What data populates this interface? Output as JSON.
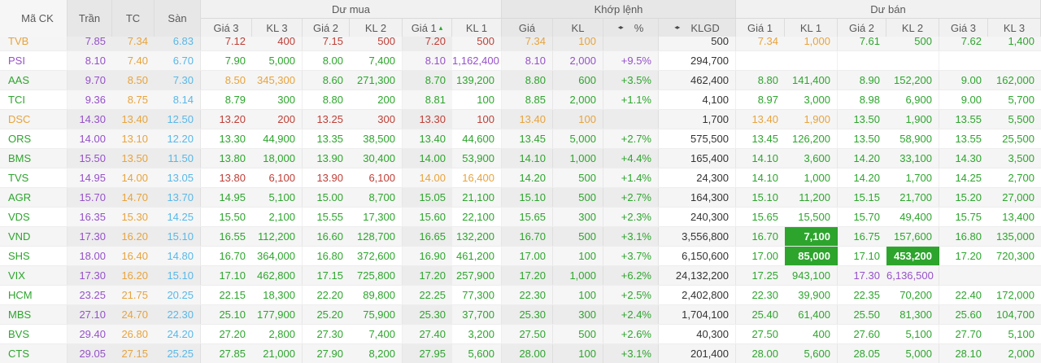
{
  "colors": {
    "up": "#2da52d",
    "down": "#bf3e36",
    "ref": "#e8a33c",
    "ceil": "#9651c9",
    "floor": "#58b8e8",
    "dark": "#333333",
    "flash_bg": "#2da52d"
  },
  "header": {
    "code": "Mã CK",
    "ceiling": "Trần",
    "ref": "TC",
    "floor": "Sàn",
    "buy_group": "Dư mua",
    "matched_group": "Khớp lệnh",
    "sell_group": "Dư bán",
    "buy_cols": [
      "Giá 3",
      "KL 3",
      "Giá 2",
      "KL 2",
      "Giá 1",
      "KL 1"
    ],
    "matched_cols": [
      "Giá",
      "KL",
      "%",
      "KLGD"
    ],
    "sell_cols": [
      "Giá 1",
      "KL 1",
      "Giá 2",
      "KL 2",
      "Giá 3",
      "KL 3"
    ],
    "sort_icon": "▴",
    "swap_icon": "◂▸"
  },
  "rows": [
    {
      "code": "TVB",
      "code_state": "ref",
      "ceiling": "7.85",
      "ref": "7.34",
      "floor": "6.83",
      "cells": [
        [
          "7.12",
          "down"
        ],
        [
          "400",
          "down"
        ],
        [
          "7.15",
          "down"
        ],
        [
          "500",
          "down"
        ],
        [
          "7.20",
          "down"
        ],
        [
          "500",
          "down"
        ],
        [
          "7.34",
          "ref"
        ],
        [
          "100",
          "ref"
        ],
        [
          "",
          ""
        ],
        [
          "500",
          "dark"
        ],
        [
          "7.34",
          "ref"
        ],
        [
          "1,000",
          "ref"
        ],
        [
          "7.61",
          "up"
        ],
        [
          "500",
          "up"
        ],
        [
          "7.62",
          "up"
        ],
        [
          "1,400",
          "up"
        ]
      ]
    },
    {
      "code": "PSI",
      "code_state": "ceil",
      "ceiling": "8.10",
      "ref": "7.40",
      "floor": "6.70",
      "cells": [
        [
          "7.90",
          "up"
        ],
        [
          "5,000",
          "up"
        ],
        [
          "8.00",
          "up"
        ],
        [
          "7,400",
          "up"
        ],
        [
          "8.10",
          "ceil"
        ],
        [
          "1,162,400",
          "ceil"
        ],
        [
          "8.10",
          "ceil"
        ],
        [
          "2,000",
          "ceil"
        ],
        [
          "+9.5%",
          "ceil"
        ],
        [
          "294,700",
          "dark"
        ],
        [
          "",
          ""
        ],
        [
          "",
          ""
        ],
        [
          "",
          ""
        ],
        [
          "",
          ""
        ],
        [
          "",
          ""
        ],
        [
          "",
          ""
        ]
      ]
    },
    {
      "code": "AAS",
      "code_state": "up",
      "ceiling": "9.70",
      "ref": "8.50",
      "floor": "7.30",
      "cells": [
        [
          "8.50",
          "ref"
        ],
        [
          "345,300",
          "ref"
        ],
        [
          "8.60",
          "up"
        ],
        [
          "271,300",
          "up"
        ],
        [
          "8.70",
          "up"
        ],
        [
          "139,200",
          "up"
        ],
        [
          "8.80",
          "up"
        ],
        [
          "600",
          "up"
        ],
        [
          "+3.5%",
          "up"
        ],
        [
          "462,400",
          "dark"
        ],
        [
          "8.80",
          "up"
        ],
        [
          "141,400",
          "up"
        ],
        [
          "8.90",
          "up"
        ],
        [
          "152,200",
          "up"
        ],
        [
          "9.00",
          "up"
        ],
        [
          "162,000",
          "up"
        ]
      ]
    },
    {
      "code": "TCI",
      "code_state": "up",
      "ceiling": "9.36",
      "ref": "8.75",
      "floor": "8.14",
      "cells": [
        [
          "8.79",
          "up"
        ],
        [
          "300",
          "up"
        ],
        [
          "8.80",
          "up"
        ],
        [
          "200",
          "up"
        ],
        [
          "8.81",
          "up"
        ],
        [
          "100",
          "up"
        ],
        [
          "8.85",
          "up"
        ],
        [
          "2,000",
          "up"
        ],
        [
          "+1.1%",
          "up"
        ],
        [
          "4,100",
          "dark"
        ],
        [
          "8.97",
          "up"
        ],
        [
          "3,000",
          "up"
        ],
        [
          "8.98",
          "up"
        ],
        [
          "6,900",
          "up"
        ],
        [
          "9.00",
          "up"
        ],
        [
          "5,700",
          "up"
        ]
      ]
    },
    {
      "code": "DSC",
      "code_state": "ref",
      "ceiling": "14.30",
      "ref": "13.40",
      "floor": "12.50",
      "cells": [
        [
          "13.20",
          "down"
        ],
        [
          "200",
          "down"
        ],
        [
          "13.25",
          "down"
        ],
        [
          "300",
          "down"
        ],
        [
          "13.30",
          "down"
        ],
        [
          "100",
          "down"
        ],
        [
          "13.40",
          "ref"
        ],
        [
          "100",
          "ref"
        ],
        [
          "",
          ""
        ],
        [
          "1,700",
          "dark"
        ],
        [
          "13.40",
          "ref"
        ],
        [
          "1,900",
          "ref"
        ],
        [
          "13.50",
          "up"
        ],
        [
          "1,900",
          "up"
        ],
        [
          "13.55",
          "up"
        ],
        [
          "5,500",
          "up"
        ]
      ]
    },
    {
      "code": "ORS",
      "code_state": "up",
      "ceiling": "14.00",
      "ref": "13.10",
      "floor": "12.20",
      "cells": [
        [
          "13.30",
          "up"
        ],
        [
          "44,900",
          "up"
        ],
        [
          "13.35",
          "up"
        ],
        [
          "38,500",
          "up"
        ],
        [
          "13.40",
          "up"
        ],
        [
          "44,600",
          "up"
        ],
        [
          "13.45",
          "up"
        ],
        [
          "5,000",
          "up"
        ],
        [
          "+2.7%",
          "up"
        ],
        [
          "575,500",
          "dark"
        ],
        [
          "13.45",
          "up"
        ],
        [
          "126,200",
          "up"
        ],
        [
          "13.50",
          "up"
        ],
        [
          "58,900",
          "up"
        ],
        [
          "13.55",
          "up"
        ],
        [
          "25,500",
          "up"
        ]
      ]
    },
    {
      "code": "BMS",
      "code_state": "up",
      "ceiling": "15.50",
      "ref": "13.50",
      "floor": "11.50",
      "cells": [
        [
          "13.80",
          "up"
        ],
        [
          "18,000",
          "up"
        ],
        [
          "13.90",
          "up"
        ],
        [
          "30,400",
          "up"
        ],
        [
          "14.00",
          "up"
        ],
        [
          "53,900",
          "up"
        ],
        [
          "14.10",
          "up"
        ],
        [
          "1,000",
          "up"
        ],
        [
          "+4.4%",
          "up"
        ],
        [
          "165,400",
          "dark"
        ],
        [
          "14.10",
          "up"
        ],
        [
          "3,600",
          "up"
        ],
        [
          "14.20",
          "up"
        ],
        [
          "33,100",
          "up"
        ],
        [
          "14.30",
          "up"
        ],
        [
          "3,500",
          "up"
        ]
      ]
    },
    {
      "code": "TVS",
      "code_state": "up",
      "ceiling": "14.95",
      "ref": "14.00",
      "floor": "13.05",
      "cells": [
        [
          "13.80",
          "down"
        ],
        [
          "6,100",
          "down"
        ],
        [
          "13.90",
          "down"
        ],
        [
          "6,100",
          "down"
        ],
        [
          "14.00",
          "ref"
        ],
        [
          "16,400",
          "ref"
        ],
        [
          "14.20",
          "up"
        ],
        [
          "500",
          "up"
        ],
        [
          "+1.4%",
          "up"
        ],
        [
          "24,300",
          "dark"
        ],
        [
          "14.10",
          "up"
        ],
        [
          "1,000",
          "up"
        ],
        [
          "14.20",
          "up"
        ],
        [
          "1,700",
          "up"
        ],
        [
          "14.25",
          "up"
        ],
        [
          "2,700",
          "up"
        ]
      ]
    },
    {
      "code": "AGR",
      "code_state": "up",
      "ceiling": "15.70",
      "ref": "14.70",
      "floor": "13.70",
      "cells": [
        [
          "14.95",
          "up"
        ],
        [
          "5,100",
          "up"
        ],
        [
          "15.00",
          "up"
        ],
        [
          "8,700",
          "up"
        ],
        [
          "15.05",
          "up"
        ],
        [
          "21,100",
          "up"
        ],
        [
          "15.10",
          "up"
        ],
        [
          "500",
          "up"
        ],
        [
          "+2.7%",
          "up"
        ],
        [
          "164,300",
          "dark"
        ],
        [
          "15.10",
          "up"
        ],
        [
          "11,200",
          "up"
        ],
        [
          "15.15",
          "up"
        ],
        [
          "21,700",
          "up"
        ],
        [
          "15.20",
          "up"
        ],
        [
          "27,000",
          "up"
        ]
      ]
    },
    {
      "code": "VDS",
      "code_state": "up",
      "ceiling": "16.35",
      "ref": "15.30",
      "floor": "14.25",
      "cells": [
        [
          "15.50",
          "up"
        ],
        [
          "2,100",
          "up"
        ],
        [
          "15.55",
          "up"
        ],
        [
          "17,300",
          "up"
        ],
        [
          "15.60",
          "up"
        ],
        [
          "22,100",
          "up"
        ],
        [
          "15.65",
          "up"
        ],
        [
          "300",
          "up"
        ],
        [
          "+2.3%",
          "up"
        ],
        [
          "240,300",
          "dark"
        ],
        [
          "15.65",
          "up"
        ],
        [
          "15,500",
          "up"
        ],
        [
          "15.70",
          "up"
        ],
        [
          "49,400",
          "up"
        ],
        [
          "15.75",
          "up"
        ],
        [
          "13,400",
          "up"
        ]
      ]
    },
    {
      "code": "VND",
      "code_state": "up",
      "ceiling": "17.30",
      "ref": "16.20",
      "floor": "15.10",
      "cells": [
        [
          "16.55",
          "up"
        ],
        [
          "112,200",
          "up"
        ],
        [
          "16.60",
          "up"
        ],
        [
          "128,700",
          "up"
        ],
        [
          "16.65",
          "up"
        ],
        [
          "132,200",
          "up"
        ],
        [
          "16.70",
          "up"
        ],
        [
          "500",
          "up"
        ],
        [
          "+3.1%",
          "up"
        ],
        [
          "3,556,800",
          "dark"
        ],
        [
          "16.70",
          "up"
        ],
        [
          "7,100",
          "flash"
        ],
        [
          "16.75",
          "up"
        ],
        [
          "157,600",
          "up"
        ],
        [
          "16.80",
          "up"
        ],
        [
          "135,000",
          "up"
        ]
      ]
    },
    {
      "code": "SHS",
      "code_state": "up",
      "ceiling": "18.00",
      "ref": "16.40",
      "floor": "14.80",
      "cells": [
        [
          "16.70",
          "up"
        ],
        [
          "364,000",
          "up"
        ],
        [
          "16.80",
          "up"
        ],
        [
          "372,600",
          "up"
        ],
        [
          "16.90",
          "up"
        ],
        [
          "461,200",
          "up"
        ],
        [
          "17.00",
          "up"
        ],
        [
          "100",
          "up"
        ],
        [
          "+3.7%",
          "up"
        ],
        [
          "6,150,600",
          "dark"
        ],
        [
          "17.00",
          "up"
        ],
        [
          "85,000",
          "flash"
        ],
        [
          "17.10",
          "up"
        ],
        [
          "453,200",
          "flash"
        ],
        [
          "17.20",
          "up"
        ],
        [
          "720,300",
          "up"
        ]
      ]
    },
    {
      "code": "VIX",
      "code_state": "up",
      "ceiling": "17.30",
      "ref": "16.20",
      "floor": "15.10",
      "cells": [
        [
          "17.10",
          "up"
        ],
        [
          "462,800",
          "up"
        ],
        [
          "17.15",
          "up"
        ],
        [
          "725,800",
          "up"
        ],
        [
          "17.20",
          "up"
        ],
        [
          "257,900",
          "up"
        ],
        [
          "17.20",
          "up"
        ],
        [
          "1,000",
          "up"
        ],
        [
          "+6.2%",
          "up"
        ],
        [
          "24,132,200",
          "dark"
        ],
        [
          "17.25",
          "up"
        ],
        [
          "943,100",
          "up"
        ],
        [
          "17.30",
          "ceil"
        ],
        [
          "6,136,500",
          "ceil"
        ],
        [
          "",
          ""
        ],
        [
          "",
          ""
        ]
      ]
    },
    {
      "code": "HCM",
      "code_state": "up",
      "ceiling": "23.25",
      "ref": "21.75",
      "floor": "20.25",
      "cells": [
        [
          "22.15",
          "up"
        ],
        [
          "18,300",
          "up"
        ],
        [
          "22.20",
          "up"
        ],
        [
          "89,800",
          "up"
        ],
        [
          "22.25",
          "up"
        ],
        [
          "77,300",
          "up"
        ],
        [
          "22.30",
          "up"
        ],
        [
          "100",
          "up"
        ],
        [
          "+2.5%",
          "up"
        ],
        [
          "2,402,800",
          "dark"
        ],
        [
          "22.30",
          "up"
        ],
        [
          "39,900",
          "up"
        ],
        [
          "22.35",
          "up"
        ],
        [
          "70,200",
          "up"
        ],
        [
          "22.40",
          "up"
        ],
        [
          "172,000",
          "up"
        ]
      ]
    },
    {
      "code": "MBS",
      "code_state": "up",
      "ceiling": "27.10",
      "ref": "24.70",
      "floor": "22.30",
      "cells": [
        [
          "25.10",
          "up"
        ],
        [
          "177,900",
          "up"
        ],
        [
          "25.20",
          "up"
        ],
        [
          "75,900",
          "up"
        ],
        [
          "25.30",
          "up"
        ],
        [
          "37,700",
          "up"
        ],
        [
          "25.30",
          "up"
        ],
        [
          "300",
          "up"
        ],
        [
          "+2.4%",
          "up"
        ],
        [
          "1,704,100",
          "dark"
        ],
        [
          "25.40",
          "up"
        ],
        [
          "61,400",
          "up"
        ],
        [
          "25.50",
          "up"
        ],
        [
          "81,300",
          "up"
        ],
        [
          "25.60",
          "up"
        ],
        [
          "104,700",
          "up"
        ]
      ]
    },
    {
      "code": "BVS",
      "code_state": "up",
      "ceiling": "29.40",
      "ref": "26.80",
      "floor": "24.20",
      "cells": [
        [
          "27.20",
          "up"
        ],
        [
          "2,800",
          "up"
        ],
        [
          "27.30",
          "up"
        ],
        [
          "7,400",
          "up"
        ],
        [
          "27.40",
          "up"
        ],
        [
          "3,200",
          "up"
        ],
        [
          "27.50",
          "up"
        ],
        [
          "500",
          "up"
        ],
        [
          "+2.6%",
          "up"
        ],
        [
          "40,300",
          "dark"
        ],
        [
          "27.50",
          "up"
        ],
        [
          "400",
          "up"
        ],
        [
          "27.60",
          "up"
        ],
        [
          "5,100",
          "up"
        ],
        [
          "27.70",
          "up"
        ],
        [
          "5,100",
          "up"
        ]
      ]
    },
    {
      "code": "CTS",
      "code_state": "up",
      "ceiling": "29.05",
      "ref": "27.15",
      "floor": "25.25",
      "cells": [
        [
          "27.85",
          "up"
        ],
        [
          "21,000",
          "up"
        ],
        [
          "27.90",
          "up"
        ],
        [
          "8,200",
          "up"
        ],
        [
          "27.95",
          "up"
        ],
        [
          "5,600",
          "up"
        ],
        [
          "28.00",
          "up"
        ],
        [
          "100",
          "up"
        ],
        [
          "+3.1%",
          "up"
        ],
        [
          "201,400",
          "dark"
        ],
        [
          "28.00",
          "up"
        ],
        [
          "5,600",
          "up"
        ],
        [
          "28.05",
          "up"
        ],
        [
          "5,000",
          "up"
        ],
        [
          "28.10",
          "up"
        ],
        [
          "2,000",
          "up"
        ]
      ]
    }
  ]
}
